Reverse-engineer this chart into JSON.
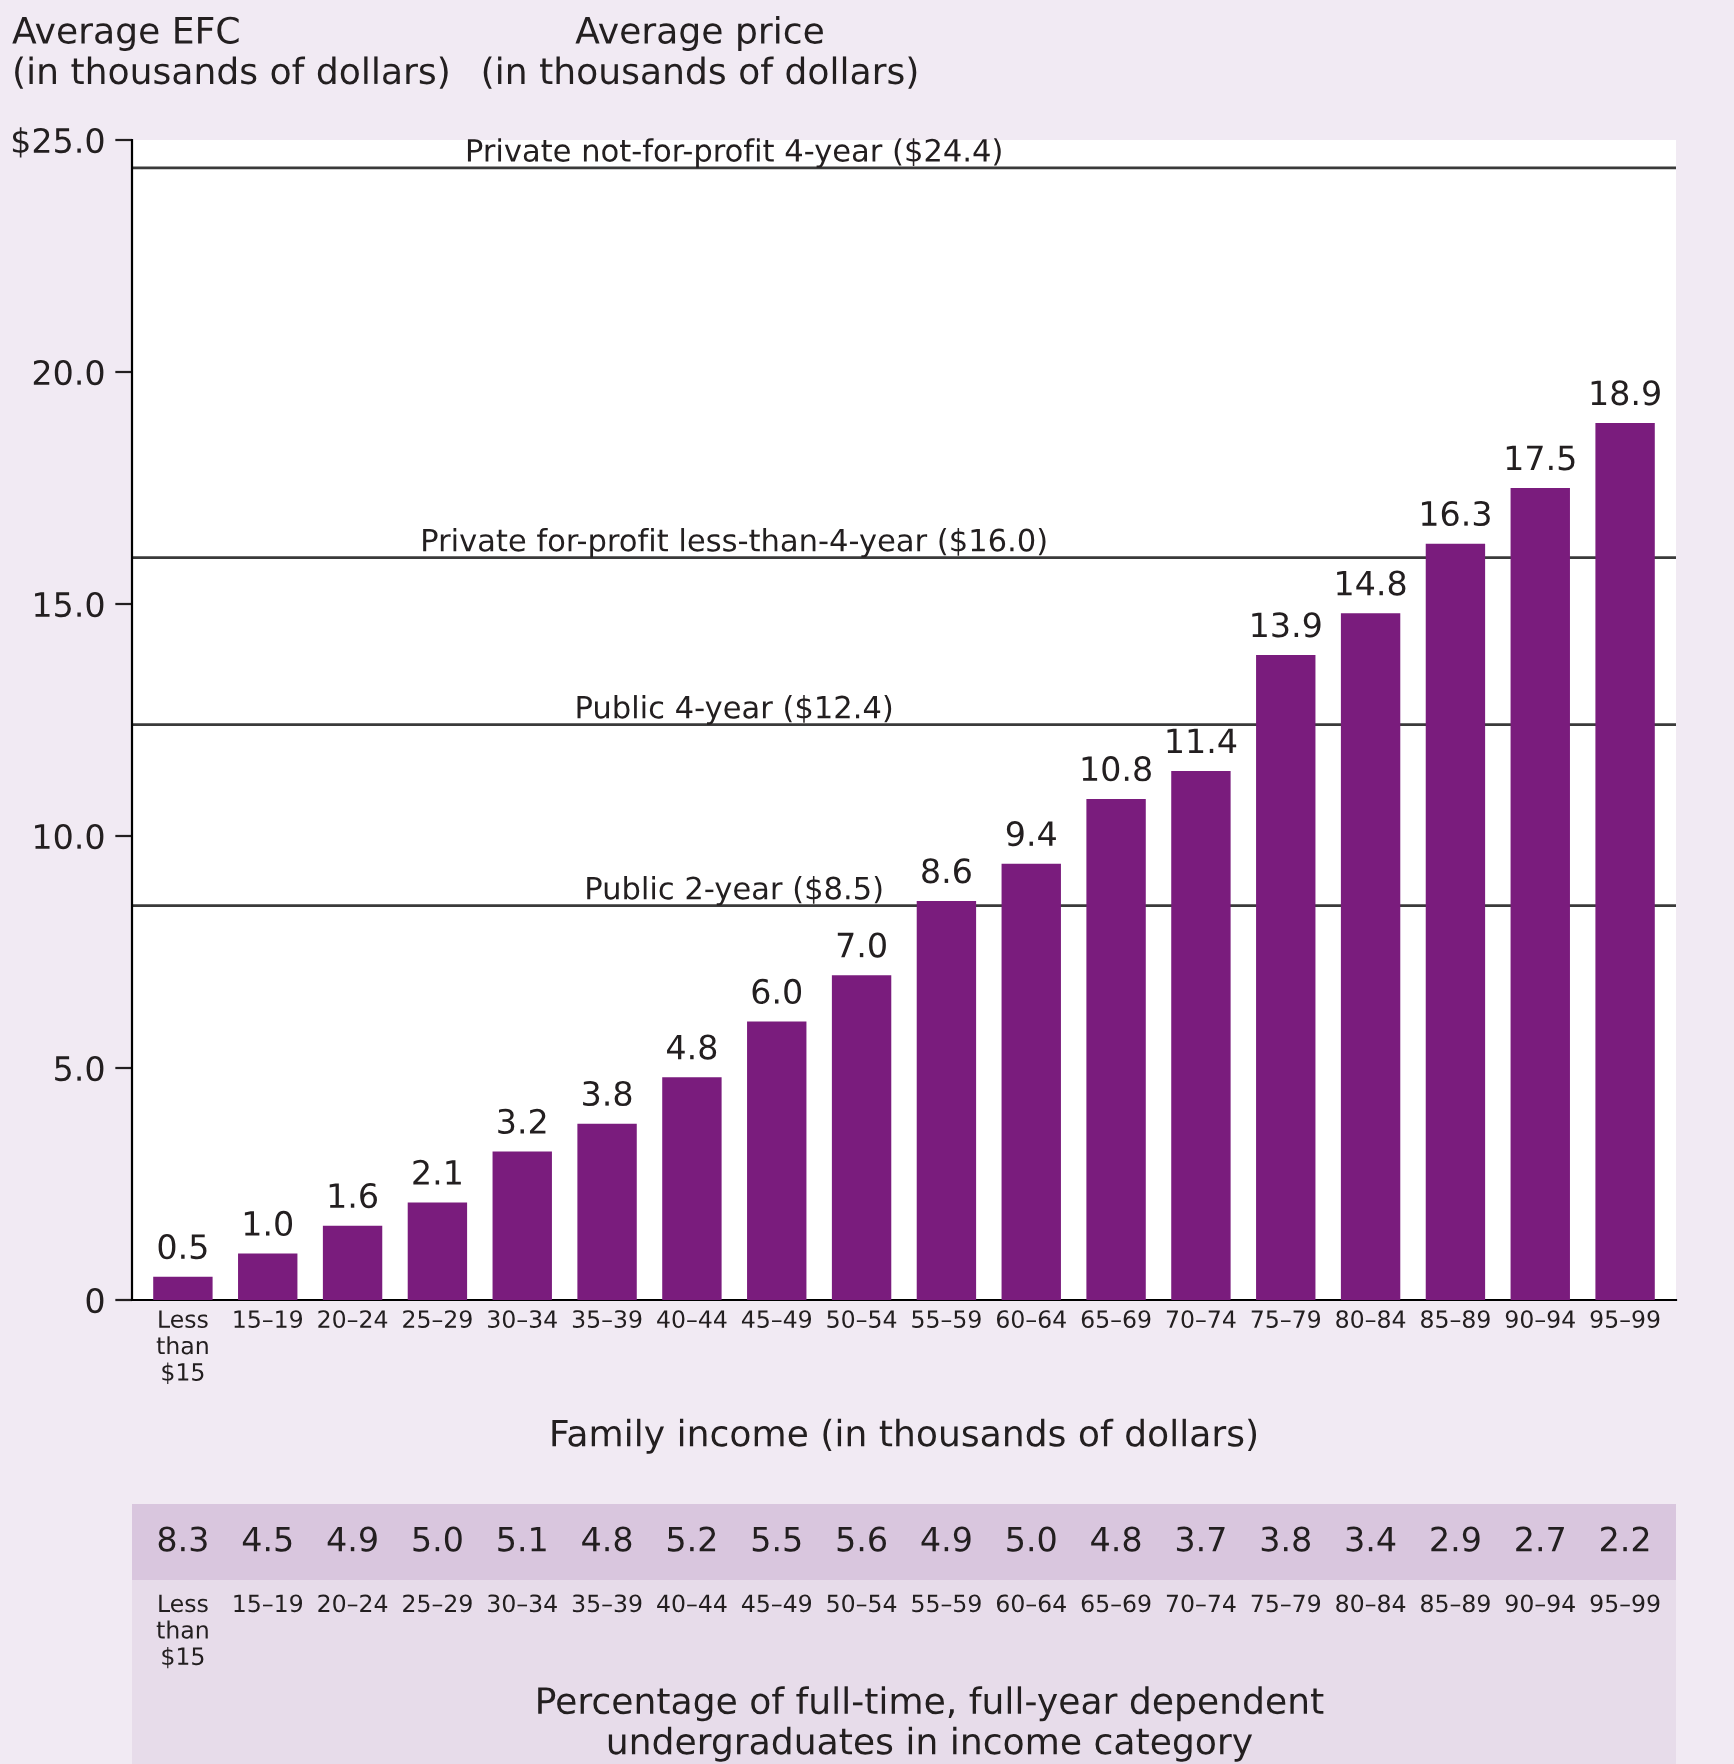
{
  "chart_data": [
    {
      "type": "bar",
      "ylabel": "Average EFC\n(in thousands of dollars)",
      "xlabel": "Family income (in thousands of dollars)",
      "categories": [
        "Less\nthan\n$15",
        "15–19",
        "20–24",
        "25–29",
        "30–34",
        "35–39",
        "40–44",
        "45–49",
        "50–54",
        "55–59",
        "60–64",
        "65–69",
        "70–74",
        "75–79",
        "80–84",
        "85–89",
        "90–94",
        "95–99"
      ],
      "values": [
        0.5,
        1.0,
        1.6,
        2.1,
        3.2,
        3.8,
        4.8,
        6.0,
        7.0,
        8.6,
        9.4,
        10.8,
        11.4,
        13.9,
        14.8,
        16.3,
        17.5,
        18.9
      ],
      "value_labels": [
        "0.5",
        "1.0",
        "1.6",
        "2.1",
        "3.2",
        "3.8",
        "4.8",
        "6.0",
        "7.0",
        "8.6",
        "9.4",
        "10.8",
        "11.4",
        "13.9",
        "14.8",
        "16.3",
        "17.5",
        "18.9"
      ],
      "color": "#7a1c7d",
      "ylim": [
        0,
        25
      ],
      "yticks": [
        0,
        {
          "value": 5,
          "label": "5.0"
        },
        {
          "value": 10,
          "label": "10.0"
        },
        {
          "value": 15,
          "label": "15.0"
        },
        {
          "value": 20,
          "label": "20.0"
        },
        {
          "value": 25,
          "label": "$25.0"
        }
      ],
      "ref_lines": [
        {
          "axis": "y",
          "value": 24.4,
          "label": "Private not-for-profit 4-year ($24.4)",
          "color": "#3a3a3a"
        },
        {
          "axis": "y",
          "value": 16.0,
          "label": "Private for-profit less-than-4-year ($16.0)",
          "color": "#3a3a3a"
        },
        {
          "axis": "y",
          "value": 12.4,
          "label": "Public 4-year ($12.4)",
          "color": "#3a3a3a"
        },
        {
          "axis": "y",
          "value": 8.5,
          "label": "Public 2-year ($8.5)",
          "color": "#3a3a3a"
        }
      ],
      "annotations": [
        "Average price\n(in thousands of dollars)"
      ],
      "grid": false,
      "legend": false
    },
    {
      "type": "other",
      "xlabel": "Percentage of full-time, full-year dependent\nundergraduates in income category",
      "categories": [
        "Less\nthan\n$15",
        "15–19",
        "20–24",
        "25–29",
        "30–34",
        "35–39",
        "40–44",
        "45–49",
        "50–54",
        "55–59",
        "60–64",
        "65–69",
        "70–74",
        "75–79",
        "80–84",
        "85–89",
        "90–94",
        "95–99"
      ],
      "values": [
        8.3,
        4.5,
        4.9,
        5.0,
        5.1,
        4.8,
        5.2,
        5.5,
        5.6,
        4.9,
        5.0,
        4.8,
        3.7,
        3.8,
        3.4,
        2.9,
        2.7,
        2.2
      ],
      "value_labels": [
        "8.3",
        "4.5",
        "4.9",
        "5.0",
        "5.1",
        "4.8",
        "5.2",
        "5.5",
        "5.6",
        "4.9",
        "5.0",
        "4.8",
        "3.7",
        "3.8",
        "3.4",
        "2.9",
        "2.7",
        "2.2"
      ]
    }
  ]
}
